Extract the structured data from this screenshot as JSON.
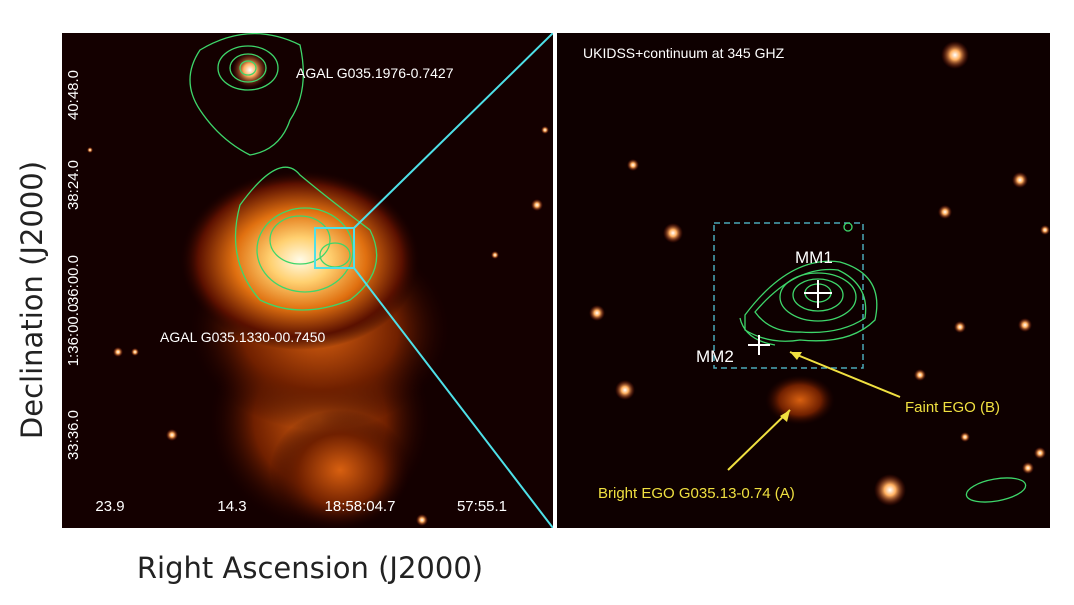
{
  "figure": {
    "axis_labels": {
      "y": "Declination (J2000)",
      "x": "Right Ascension (J2000)"
    },
    "left_panel": {
      "y_ticks": [
        "40:48.0",
        "38:24.0",
        "36:00.0",
        "1:36:00.0",
        "33:36.0"
      ],
      "x_ticks": [
        "23.9",
        "14.3",
        "18:58:04.7",
        "57:55.1"
      ],
      "annotations": [
        "AGAL G035.1976-0.7427",
        "AGAL G035.1330-00.7450"
      ]
    },
    "right_panel": {
      "title": "UKIDSS+continuum at 345 GHZ",
      "sources": [
        "MM1",
        "MM2"
      ],
      "annotations": [
        "Faint EGO (B)",
        "Bright EGO G035.13-0.74 (A)"
      ]
    }
  }
}
